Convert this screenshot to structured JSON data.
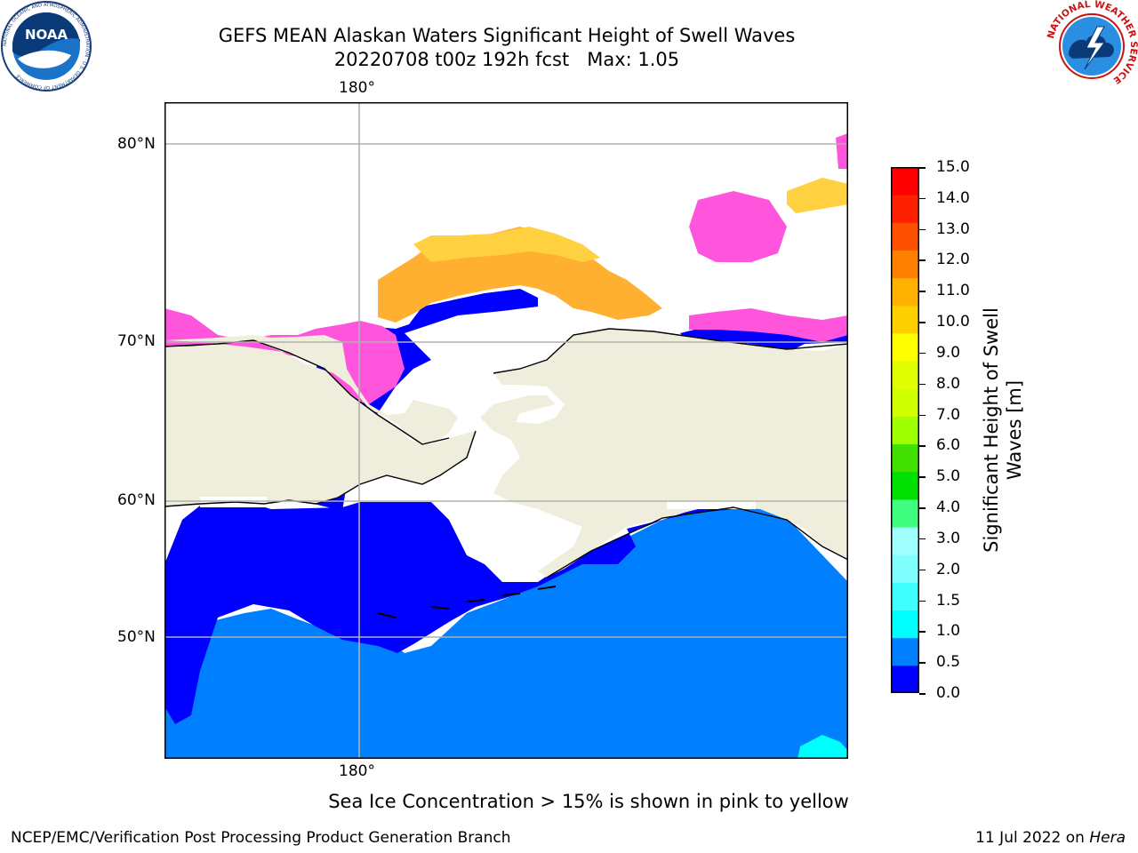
{
  "header": {
    "title_line1": "GEFS MEAN Alaskan Waters Significant Height of Swell Waves",
    "title_line2": "20220708 t00z 192h fcst   Max: 1.05"
  },
  "logos": {
    "noaa": {
      "text": "NOAA",
      "ring_text": "NATIONAL OCEANIC AND ATMOSPHERIC ADMINISTRATION · U.S. DEPARTMENT OF COMMERCE"
    },
    "nws": {
      "ring_text": "NATIONAL WEATHER SERVICE"
    }
  },
  "map": {
    "top_lon_label": "180°",
    "bottom_lon_label": "180°",
    "lat_labels": [
      "80°N",
      "70°N",
      "60°N",
      "50°N"
    ],
    "colors": {
      "land": "#efeddb",
      "ocean_deep": "#0000ff",
      "ocean_mid": "#0080ff",
      "ice_pink": "#ff55dd",
      "ice_orange": "#ffb030",
      "ice_yellow": "#ffd040",
      "grid": "#b0b0b0"
    }
  },
  "colorbar": {
    "label": "Significant Height of Swell Waves [m]",
    "label_line1": "Significant Height of Swell",
    "label_line2": "Waves [m]",
    "ticks": [
      "15.0",
      "14.0",
      "13.0",
      "12.0",
      "11.0",
      "10.0",
      "9.0",
      "8.0",
      "7.0",
      "6.0",
      "5.0",
      "4.0",
      "3.0",
      "2.0",
      "1.5",
      "1.0",
      "0.5",
      "0.0"
    ],
    "colors_bottom_to_top": [
      "#0000ff",
      "#0080ff",
      "#00ffff",
      "#40ffff",
      "#80ffff",
      "#a0ffff",
      "#40ff80",
      "#00e000",
      "#40e000",
      "#a0ff00",
      "#d0ff00",
      "#e0ff00",
      "#ffff00",
      "#ffd000",
      "#ffb000",
      "#ff8000",
      "#ff5000",
      "#ff2000",
      "#ff0000"
    ]
  },
  "footer": {
    "note": "Sea Ice Concentration > 15% is shown in pink to yellow",
    "left": "NCEP/EMC/Verification Post Processing Product Generation Branch",
    "right_prefix": "11 Jul 2022 on ",
    "right_host": "Hera"
  }
}
